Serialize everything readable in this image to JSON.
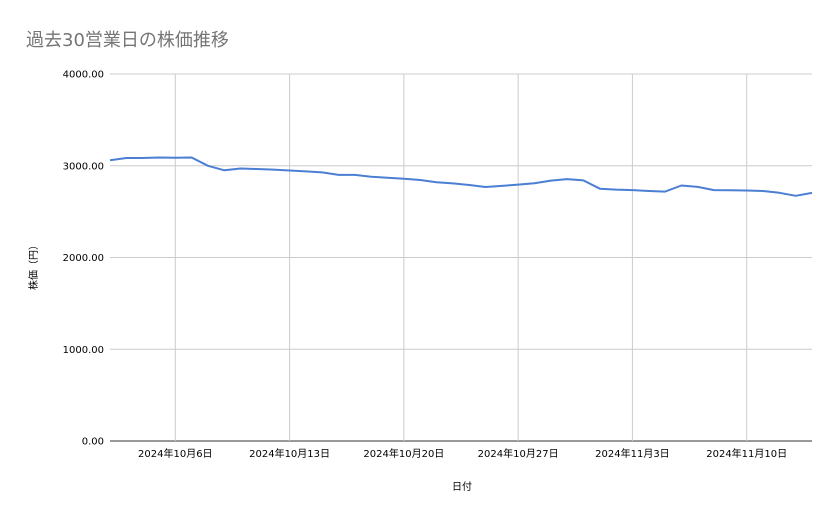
{
  "chart_data": {
    "type": "line",
    "title": "過去30営業日の株価推移",
    "xlabel": "日付",
    "ylabel": "株価（円）",
    "ylim": [
      0,
      4000
    ],
    "y_ticks": [
      "0.00",
      "1000.00",
      "2000.00",
      "3000.00",
      "4000.00"
    ],
    "x_tick_labels": [
      "2024年10月6日",
      "2024年10月13日",
      "2024年10月20日",
      "2024年10月27日",
      "2024年11月3日",
      "2024年11月10日"
    ],
    "x_tick_dates": [
      "2024-10-06",
      "2024-10-13",
      "2024-10-20",
      "2024-10-27",
      "2024-11-03",
      "2024-11-10"
    ],
    "xlim": [
      "2024-10-02",
      "2024-11-14"
    ],
    "grid": true,
    "line_color": "#4a7fd4",
    "series": [
      {
        "points": [
          [
            "2024-10-02",
            3060
          ],
          [
            "2024-10-03",
            3085
          ],
          [
            "2024-10-04",
            3085
          ],
          [
            "2024-10-05",
            3090
          ],
          [
            "2024-10-06",
            3088
          ],
          [
            "2024-10-07",
            3090
          ],
          [
            "2024-10-08",
            3000
          ],
          [
            "2024-10-09",
            2950
          ],
          [
            "2024-10-10",
            2970
          ],
          [
            "2024-10-11",
            2965
          ],
          [
            "2024-10-12",
            2958
          ],
          [
            "2024-10-13",
            2948
          ],
          [
            "2024-10-14",
            2938
          ],
          [
            "2024-10-15",
            2928
          ],
          [
            "2024-10-16",
            2900
          ],
          [
            "2024-10-17",
            2900
          ],
          [
            "2024-10-18",
            2880
          ],
          [
            "2024-10-19",
            2870
          ],
          [
            "2024-10-20",
            2858
          ],
          [
            "2024-10-21",
            2845
          ],
          [
            "2024-10-22",
            2820
          ],
          [
            "2024-10-23",
            2808
          ],
          [
            "2024-10-24",
            2790
          ],
          [
            "2024-10-25",
            2768
          ],
          [
            "2024-10-26",
            2780
          ],
          [
            "2024-10-27",
            2795
          ],
          [
            "2024-10-28",
            2810
          ],
          [
            "2024-10-29",
            2838
          ],
          [
            "2024-10-30",
            2855
          ],
          [
            "2024-10-31",
            2840
          ],
          [
            "2024-11-01",
            2750
          ],
          [
            "2024-11-02",
            2740
          ],
          [
            "2024-11-03",
            2735
          ],
          [
            "2024-11-04",
            2725
          ],
          [
            "2024-11-05",
            2718
          ],
          [
            "2024-11-06",
            2785
          ],
          [
            "2024-11-07",
            2770
          ],
          [
            "2024-11-08",
            2735
          ],
          [
            "2024-11-09",
            2732
          ],
          [
            "2024-11-10",
            2730
          ],
          [
            "2024-11-11",
            2725
          ],
          [
            "2024-11-12",
            2705
          ],
          [
            "2024-11-13",
            2672
          ],
          [
            "2024-11-14",
            2705
          ],
          [
            "2024-11-15",
            2705
          ]
        ]
      }
    ]
  }
}
